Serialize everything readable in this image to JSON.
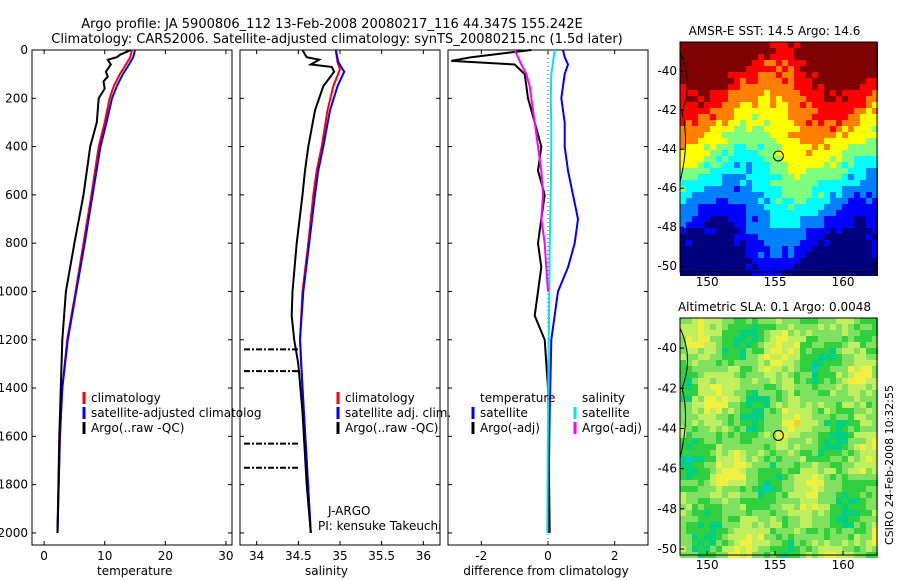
{
  "header": {
    "line1": "Argo profile: JA 5900806_112 13-Feb-2008 20080217_116 44.347S 155.242E",
    "line2": "Climatology: CARS2006. Satellite-adjusted climatology: synTS_20080215.nc (1.5d later)"
  },
  "side_stamp": "CSIRO 24-Feb-2008 10:32:55",
  "colors": {
    "climatology": "#ff0000",
    "satellite": "#0000ff",
    "argo": "#000000",
    "sat_salinity": "#00e5ee",
    "argo_salinity": "#ff00ff"
  },
  "chart_data": [
    {
      "type": "line",
      "xlabel": "temperature",
      "xlim": [
        -2,
        31
      ],
      "ylim": [
        0,
        2050
      ],
      "xticks": [
        "0",
        "10",
        "20",
        "30"
      ],
      "xtick_values": [
        0,
        10,
        20,
        30
      ],
      "yticks": [
        "0",
        "200",
        "400",
        "600",
        "800",
        "1000",
        "1200",
        "1400",
        "1600",
        "1800",
        "2000"
      ],
      "ytick_values": [
        0,
        200,
        400,
        600,
        800,
        1000,
        1200,
        1400,
        1600,
        1800,
        2000
      ],
      "legend": [
        "climatology",
        "satellite-adjusted climatolog",
        "Argo(..raw -QC)"
      ],
      "series": [
        {
          "name": "climatology",
          "color": "#ff0000",
          "x": [
            14.5,
            14.2,
            13.5,
            12.5,
            11.5,
            10.8,
            10.0,
            9.0,
            7.8,
            6.5,
            5.2,
            3.8,
            3.0,
            2.6,
            2.2
          ],
          "y": [
            0,
            30,
            60,
            100,
            150,
            200,
            300,
            400,
            600,
            800,
            1000,
            1200,
            1400,
            1600,
            2000
          ]
        },
        {
          "name": "satellite-adjusted climatolog",
          "color": "#0000ff",
          "x": [
            15.0,
            14.7,
            14.0,
            13.0,
            12.0,
            11.2,
            10.3,
            9.3,
            8.0,
            6.7,
            5.3,
            3.9,
            3.0,
            2.6,
            2.2
          ],
          "y": [
            0,
            30,
            60,
            100,
            150,
            200,
            300,
            400,
            600,
            800,
            1000,
            1200,
            1400,
            1600,
            2000
          ]
        },
        {
          "name": "Argo(..raw -QC)",
          "color": "#000000",
          "x": [
            14.3,
            12.5,
            12.0,
            10.5,
            11.0,
            10.2,
            10.5,
            9.8,
            10.0,
            9.0,
            8.7,
            7.6,
            6.5,
            5.0,
            3.6,
            3.0,
            2.5,
            2.2
          ],
          "y": [
            0,
            20,
            30,
            40,
            60,
            90,
            110,
            130,
            160,
            200,
            300,
            400,
            600,
            800,
            1000,
            1200,
            1600,
            2000
          ]
        }
      ]
    },
    {
      "type": "line",
      "xlabel": "salinity",
      "xlim": [
        33.8,
        36.2
      ],
      "ylim": [
        0,
        2050
      ],
      "xticks": [
        "34",
        "34.5",
        "35",
        "35.5",
        "36"
      ],
      "xtick_values": [
        34,
        34.5,
        35,
        35.5,
        36
      ],
      "legend": [
        "climatology",
        "satellite adj. clim.",
        "Argo(..raw -QC)"
      ],
      "annotation": [
        "J-ARGO",
        "PI: kensuke Takeuchi"
      ],
      "series": [
        {
          "name": "climatology",
          "color": "#ff0000",
          "x": [
            34.95,
            34.97,
            35.0,
            34.92,
            34.85,
            34.78,
            34.72,
            34.68,
            34.62,
            34.55,
            34.52,
            34.55,
            34.6,
            34.65
          ],
          "y": [
            0,
            50,
            80,
            150,
            250,
            400,
            500,
            600,
            800,
            1000,
            1200,
            1400,
            1700,
            2000
          ]
        },
        {
          "name": "satellite adj. clim.",
          "color": "#0000ff",
          "x": [
            34.95,
            34.98,
            35.05,
            34.97,
            34.88,
            34.8,
            34.74,
            34.7,
            34.63,
            34.56,
            34.52,
            34.55,
            34.6,
            34.65
          ],
          "y": [
            0,
            50,
            90,
            150,
            250,
            400,
            500,
            600,
            800,
            1000,
            1200,
            1400,
            1700,
            2000
          ]
        },
        {
          "name": "Argo(..raw -QC)",
          "color": "#000000",
          "x": [
            34.55,
            34.6,
            34.75,
            34.65,
            34.9,
            34.93,
            34.8,
            34.7,
            34.62,
            34.58,
            34.55,
            34.48,
            34.43,
            34.42,
            34.45,
            34.5,
            34.55,
            34.6,
            34.65
          ],
          "y": [
            0,
            30,
            40,
            60,
            70,
            90,
            150,
            250,
            400,
            500,
            600,
            800,
            1000,
            1100,
            1200,
            1300,
            1500,
            1800,
            2000
          ]
        }
      ],
      "flag_depths": [
        1240,
        1330,
        1630,
        1730
      ]
    },
    {
      "type": "line",
      "xlabel": "difference from climatology",
      "xlim": [
        -3,
        3
      ],
      "ylim": [
        0,
        2050
      ],
      "xticks": [
        "-2",
        "0",
        "2"
      ],
      "xtick_values": [
        -2,
        0,
        2
      ],
      "legend_left": [
        "temperature",
        "satellite",
        "Argo(-adj)"
      ],
      "legend_right": [
        "salinity",
        "satellite",
        "Argo(-adj)"
      ],
      "series": [
        {
          "name": "temperature satellite",
          "color": "#0000ff",
          "x": [
            0.45,
            0.5,
            0.6,
            0.5,
            0.4,
            0.5,
            0.5,
            0.6,
            0.9,
            0.8,
            0.6,
            0.3,
            0.1,
            0.05,
            0.0
          ],
          "y": [
            0,
            30,
            60,
            100,
            200,
            300,
            400,
            500,
            700,
            800,
            900,
            1000,
            1200,
            1500,
            2000
          ]
        },
        {
          "name": "temperature Argo(-adj)",
          "color": "#000000",
          "x": [
            -0.5,
            -2.3,
            -2.9,
            -1.0,
            -0.7,
            -0.6,
            -0.4,
            -0.2,
            -0.3,
            -0.1,
            -0.2,
            -0.3,
            -0.2,
            -0.3,
            -0.4,
            -0.1,
            0.0,
            0.05
          ],
          "y": [
            0,
            30,
            45,
            60,
            100,
            200,
            300,
            400,
            500,
            600,
            700,
            800,
            900,
            1000,
            1100,
            1200,
            1400,
            2000
          ]
        },
        {
          "name": "salinity satellite",
          "color": "#00e5ee",
          "x": [
            0.2,
            0.15,
            0.1,
            0.08,
            0.1,
            0.1,
            0.08,
            0.05,
            0.04,
            0.02,
            0.0,
            -0.02
          ],
          "y": [
            0,
            50,
            100,
            200,
            300,
            400,
            600,
            800,
            1000,
            1200,
            1500,
            2000
          ]
        },
        {
          "name": "salinity Argo(-adj)",
          "color": "#ff00ff",
          "x": [
            -1.0,
            -0.8,
            -0.65,
            -0.55,
            -0.5,
            -0.4,
            -0.3,
            -0.2,
            -0.15,
            -0.2,
            -0.1,
            -0.05,
            0.0
          ],
          "y": [
            0,
            60,
            100,
            150,
            200,
            300,
            400,
            500,
            600,
            700,
            800,
            900,
            1000
          ]
        }
      ]
    },
    {
      "type": "heatmap",
      "title": "AMSR-E SST: 14.5 Argo: 14.6",
      "xlim": [
        148,
        162.5
      ],
      "ylim": [
        -50.3,
        -38.5
      ],
      "xticks": [
        "150",
        "155",
        "160"
      ],
      "xtick_values": [
        150,
        155,
        160
      ],
      "yticks": [
        "-40",
        "-42",
        "-44",
        "-46",
        "-48",
        "-50"
      ],
      "ytick_values": [
        -40,
        -42,
        -44,
        -46,
        -48,
        -50
      ],
      "marker": {
        "lon": 155.242,
        "lat": -44.347
      },
      "colors": [
        "#00007f",
        "#0000ff",
        "#0080ff",
        "#00ffff",
        "#7fff7f",
        "#ffff00",
        "#ff8000",
        "#ff0000",
        "#7f0000"
      ]
    },
    {
      "type": "heatmap",
      "title": "Altimetric SLA: 0.1 Argo: 0.0048",
      "xlim": [
        148,
        162.5
      ],
      "ylim": [
        -50.3,
        -38.5
      ],
      "xticks": [
        "150",
        "155",
        "160"
      ],
      "xtick_values": [
        150,
        155,
        160
      ],
      "yticks": [
        "-40",
        "-42",
        "-44",
        "-46",
        "-48",
        "-50"
      ],
      "ytick_values": [
        -40,
        -42,
        -44,
        -46,
        -48,
        -50
      ],
      "marker": {
        "lon": 155.242,
        "lat": -44.347
      },
      "colors": [
        "#00c8c8",
        "#00d080",
        "#30d040",
        "#80e060",
        "#c0f060",
        "#f0f040",
        "#ffd020"
      ]
    }
  ]
}
